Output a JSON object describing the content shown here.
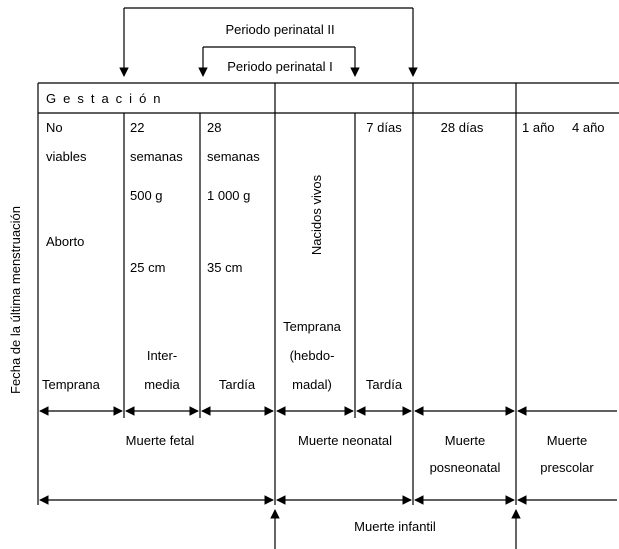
{
  "periods": [
    "Periodo perinatal II",
    "Periodo perinatal I"
  ],
  "side_label": "Fecha de la última menstruación",
  "header": "Gestación",
  "columns": [
    [
      "No",
      "viables",
      "Aborto",
      "Temprana"
    ],
    [
      "22",
      "semanas",
      "500 g",
      "25 cm",
      "Inter-",
      "media"
    ],
    [
      "28",
      "semanas",
      "1 000 g",
      "35 cm",
      "Tardía"
    ],
    [
      "Nacidos vivos",
      "Temprana",
      "(hebdo-",
      "madal)"
    ],
    [
      "7 días",
      "Tardía"
    ],
    [
      "28 días"
    ],
    [
      "1 año",
      "4 año"
    ]
  ],
  "outcomes": [
    "Muerte fetal",
    "Muerte neonatal",
    "Muerte",
    "posneonatal",
    "Muerte",
    "prescolar",
    "Muerte infantil"
  ]
}
